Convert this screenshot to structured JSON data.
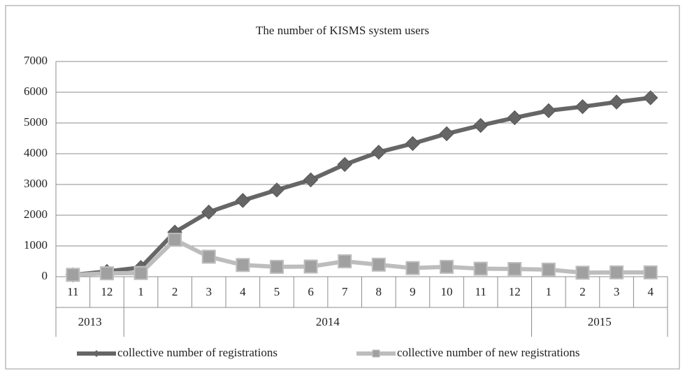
{
  "chart_data": {
    "type": "line",
    "title": "The number of KISMS system users",
    "categories": [
      "11",
      "12",
      "1",
      "2",
      "3",
      "4",
      "5",
      "6",
      "7",
      "8",
      "9",
      "10",
      "11",
      "12",
      "1",
      "2",
      "3",
      "4"
    ],
    "year_groups": [
      {
        "label": "2013",
        "size": 2
      },
      {
        "label": "2014",
        "size": 12
      },
      {
        "label": "2015",
        "size": 4
      }
    ],
    "series": [
      {
        "name": "collective number of registrations",
        "color": "#666666",
        "marker": "diamond",
        "values": [
          60,
          170,
          300,
          1450,
          2100,
          2480,
          2820,
          3150,
          3650,
          4050,
          4330,
          4650,
          4920,
          5170,
          5400,
          5530,
          5680,
          5820
        ]
      },
      {
        "name": "collective number of new registrations",
        "color": "#bdbdbd",
        "marker": "square",
        "values": [
          60,
          110,
          120,
          1200,
          650,
          380,
          320,
          330,
          500,
          390,
          280,
          320,
          260,
          250,
          230,
          130,
          140,
          140
        ]
      }
    ],
    "ylim": [
      0,
      7000
    ],
    "yticks": [
      0,
      1000,
      2000,
      3000,
      4000,
      5000,
      6000,
      7000
    ],
    "grid": true,
    "legend": "bottom"
  }
}
